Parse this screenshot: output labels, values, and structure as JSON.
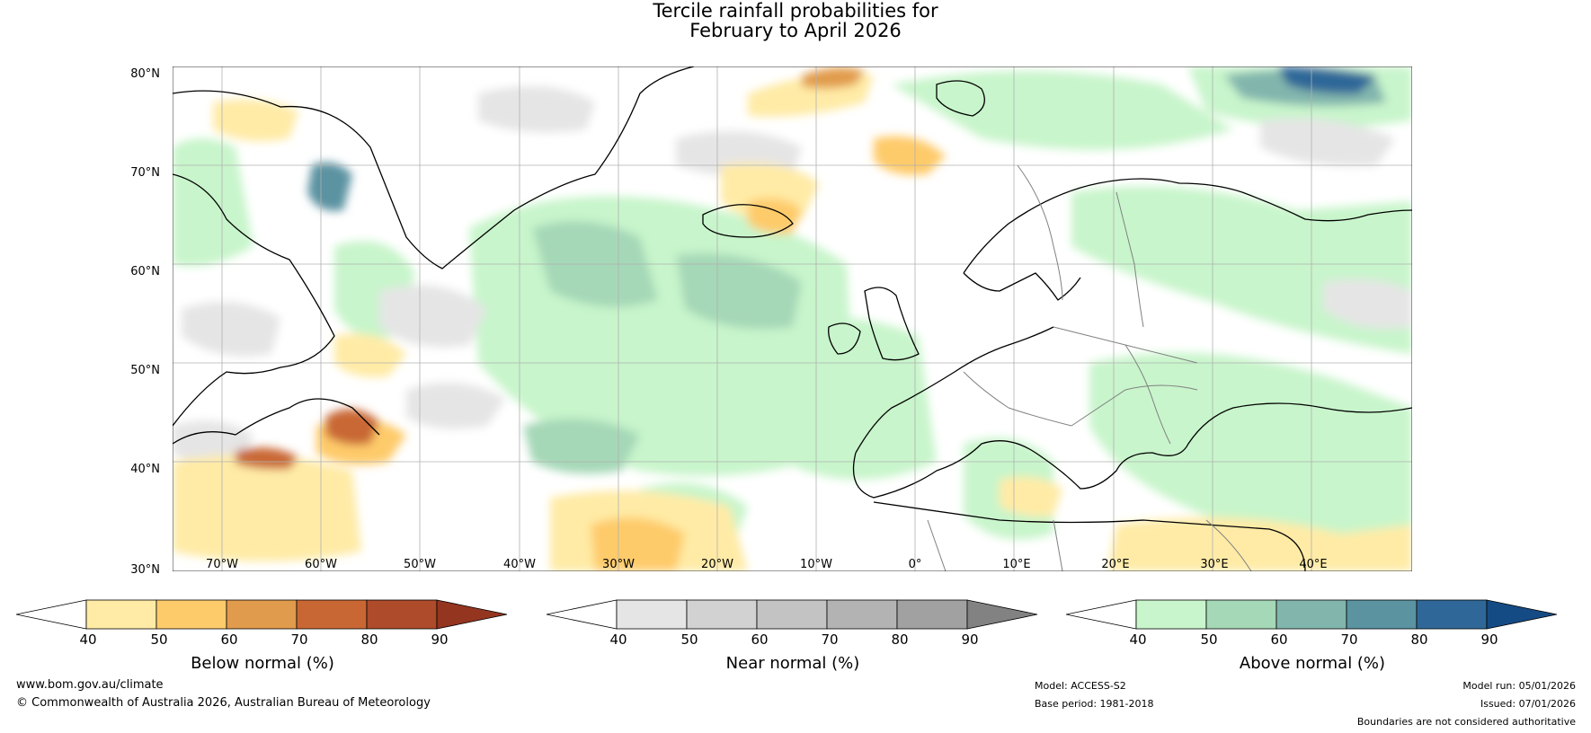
{
  "title": {
    "line1": "Tercile rainfall probabilities for",
    "line2": "February to April 2026"
  },
  "map": {
    "lat_labels": [
      "80°N",
      "70°N",
      "60°N",
      "50°N",
      "40°N",
      "30°N"
    ],
    "lon_labels": [
      "70°W",
      "60°W",
      "50°W",
      "40°W",
      "30°W",
      "20°W",
      "10°W",
      "0°",
      "10°E",
      "20°E",
      "30°E",
      "40°E"
    ],
    "colors": {
      "land_outline": "#000000",
      "borders": "#808080",
      "grid": "#b0b0b0"
    }
  },
  "colorbars": [
    {
      "name": "below",
      "label": "Below normal (%)",
      "ticks": [
        "40",
        "50",
        "60",
        "70",
        "80",
        "90"
      ],
      "colors": [
        "#ffffff",
        "#ffeba6",
        "#fecb6b",
        "#e19b4c",
        "#c96734",
        "#ae4b2a",
        "#943520"
      ]
    },
    {
      "name": "near",
      "label": "Near normal (%)",
      "ticks": [
        "40",
        "50",
        "60",
        "70",
        "80",
        "90"
      ],
      "colors": [
        "#ffffff",
        "#e5e5e5",
        "#d2d2d2",
        "#c3c3c3",
        "#b3b3b3",
        "#a1a1a1",
        "#828282"
      ]
    },
    {
      "name": "above",
      "label": "Above normal (%)",
      "ticks": [
        "40",
        "50",
        "60",
        "70",
        "80",
        "90"
      ],
      "colors": [
        "#ffffff",
        "#c8f5cb",
        "#a5d8b7",
        "#82b6ad",
        "#5b93a1",
        "#2f6898",
        "#154b84"
      ]
    }
  ],
  "footer": {
    "website": "www.bom.gov.au/climate",
    "copyright": "© Commonwealth of Australia 2026, Australian Bureau of Meteorology",
    "model": "Model: ACCESS-S2",
    "base_period": "Base period: 1981-2018",
    "model_run": "Model run: 05/01/2026",
    "issued": "Issued: 07/01/2026",
    "disclaimer": "Boundaries are not considered authoritative"
  }
}
